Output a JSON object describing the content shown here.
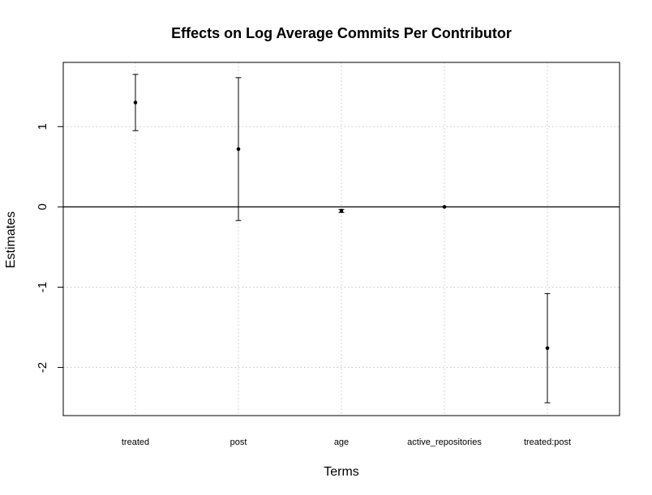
{
  "chart_data": {
    "type": "scatter",
    "subtype": "point-estimates-with-error-bars",
    "title": "Effects on Log Average Commits Per Contributor",
    "xlabel": "Terms",
    "ylabel": "Estimates",
    "categories": [
      "treated",
      "post",
      "age",
      "active_repositories",
      "treated:post"
    ],
    "estimates": [
      1.3,
      0.72,
      -0.05,
      0.0,
      -1.76
    ],
    "lower": [
      0.95,
      -0.17,
      -0.07,
      0.0,
      -2.44
    ],
    "upper": [
      1.65,
      1.61,
      -0.03,
      0.0,
      -1.08
    ],
    "y_ticks": [
      -2,
      -1,
      0,
      1
    ],
    "ylim": [
      -2.6,
      1.8
    ],
    "reference_line": 0,
    "grid": true,
    "colors": {
      "points": "#000000",
      "grid": "#c8c8c8",
      "axis": "#000000"
    }
  }
}
